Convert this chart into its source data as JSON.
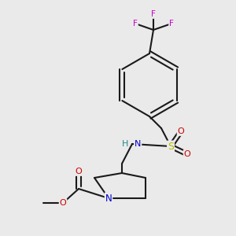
{
  "background_color": "#eaeaea",
  "fig_size": [
    3.0,
    3.0
  ],
  "dpi": 100,
  "colors": {
    "C": "#1a1a1a",
    "N": "#0000cc",
    "O": "#cc0000",
    "S": "#b8b800",
    "F": "#cc00cc",
    "H": "#2a8888",
    "bond": "#1a1a1a"
  },
  "bond_lw": 1.5
}
